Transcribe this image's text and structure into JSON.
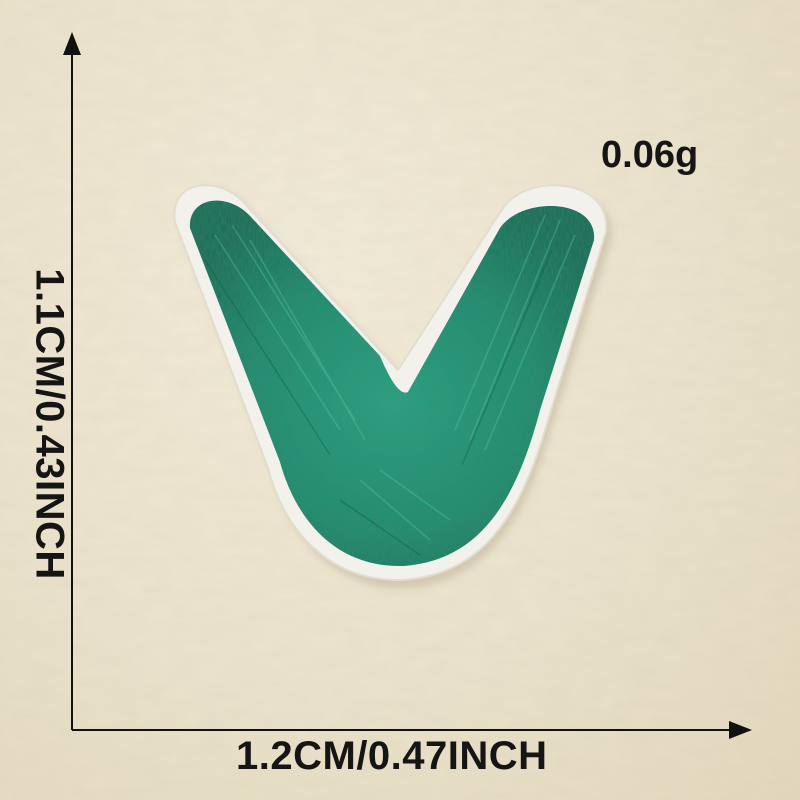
{
  "product": {
    "weight": "0.06g",
    "width_label": "1.2CM/0.47INCH",
    "height_label": "1.1CM/0.43INCH"
  },
  "colors": {
    "background": "#ece3cc",
    "thread_green": "#1f8f6f",
    "backing": "#f2f0ea",
    "arrow": "#111111"
  },
  "icons": {
    "patch": "embroidered-letter-v-patch",
    "axes": "dimension-arrows"
  }
}
